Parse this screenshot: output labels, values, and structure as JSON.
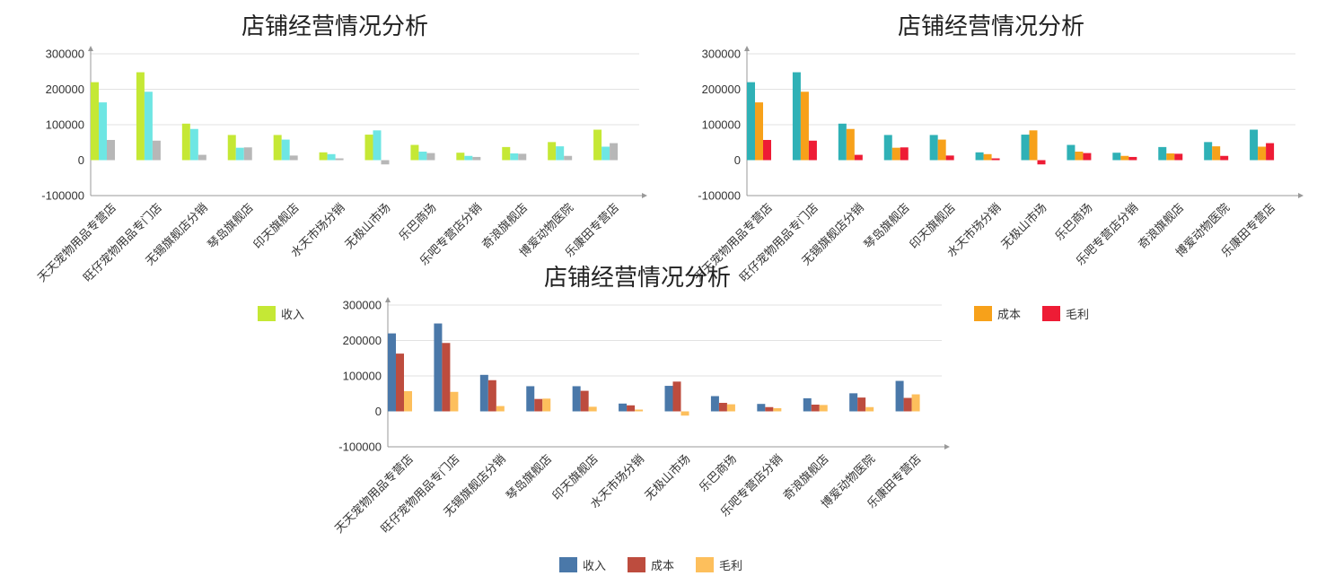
{
  "chart_data": [
    {
      "type": "bar",
      "title": "店铺经营情况分析",
      "categories": [
        "天天宠物用品专营店",
        "旺仔宠物用品专门店",
        "无锡旗舰店分销",
        "琴岛旗舰店",
        "印天旗舰店",
        "水天市场分销",
        "无极山市场",
        "乐巴商场",
        "乐吧专营店分销",
        "奇浪旗舰店",
        "博爱动物医院",
        "乐康田专营店"
      ],
      "series": [
        {
          "name": "收入",
          "values": [
            220000,
            248000,
            103000,
            71000,
            71000,
            22000,
            72000,
            43000,
            21000,
            37000,
            51000,
            86000
          ]
        },
        {
          "name": "",
          "values": [
            163000,
            193000,
            88000,
            35000,
            58000,
            17000,
            84000,
            24000,
            12000,
            19000,
            39000,
            38000
          ]
        },
        {
          "name": "",
          "values": [
            57000,
            55000,
            15000,
            36000,
            13000,
            5000,
            -12000,
            20000,
            9000,
            18000,
            12000,
            48000
          ]
        }
      ],
      "colors": [
        "#c5e835",
        "#6ee6e3",
        "#b7b7b7"
      ],
      "yticks": [
        "300000",
        "200000",
        "100000",
        "0",
        "-100000"
      ],
      "ylim": [
        -100000,
        300000
      ],
      "legend": [
        {
          "label": "收入",
          "color": "#c5e835"
        }
      ],
      "legend_position": "bottom-left",
      "grid": true
    },
    {
      "type": "bar",
      "title": "店铺经营情况分析",
      "categories": [
        "天天宠物用品专营店",
        "旺仔宠物用品专门店",
        "无锡旗舰店分销",
        "琴岛旗舰店",
        "印天旗舰店",
        "水天市场分销",
        "无极山市场",
        "乐巴商场",
        "乐吧专营店分销",
        "奇浪旗舰店",
        "博爱动物医院",
        "乐康田专营店"
      ],
      "series": [
        {
          "name": "",
          "values": [
            220000,
            248000,
            103000,
            71000,
            71000,
            22000,
            72000,
            43000,
            21000,
            37000,
            51000,
            86000
          ]
        },
        {
          "name": "成本",
          "values": [
            163000,
            193000,
            88000,
            35000,
            58000,
            17000,
            84000,
            24000,
            12000,
            19000,
            39000,
            38000
          ]
        },
        {
          "name": "毛利",
          "values": [
            57000,
            55000,
            15000,
            36000,
            13000,
            5000,
            -12000,
            20000,
            9000,
            18000,
            12000,
            48000
          ]
        }
      ],
      "colors": [
        "#2fb1b6",
        "#f7a11a",
        "#ee1c35"
      ],
      "yticks": [
        "300000",
        "200000",
        "100000",
        "0",
        "-100000"
      ],
      "ylim": [
        -100000,
        300000
      ],
      "legend": [
        {
          "label": "成本",
          "color": "#f7a11a"
        },
        {
          "label": "毛利",
          "color": "#ee1c35"
        }
      ],
      "legend_position": "bottom-right",
      "grid": true
    },
    {
      "type": "bar",
      "title": "店铺经营情况分析",
      "categories": [
        "天天宠物用品专营店",
        "旺仔宠物用品专门店",
        "无锡旗舰店分销",
        "琴岛旗舰店",
        "印天旗舰店",
        "水天市场分销",
        "无极山市场",
        "乐巴商场",
        "乐吧专营店分销",
        "奇浪旗舰店",
        "博爱动物医院",
        "乐康田专营店"
      ],
      "series": [
        {
          "name": "收入",
          "values": [
            220000,
            248000,
            103000,
            71000,
            71000,
            22000,
            72000,
            43000,
            21000,
            37000,
            51000,
            86000
          ]
        },
        {
          "name": "成本",
          "values": [
            163000,
            193000,
            88000,
            35000,
            58000,
            17000,
            84000,
            24000,
            12000,
            19000,
            39000,
            38000
          ]
        },
        {
          "name": "毛利",
          "values": [
            57000,
            55000,
            15000,
            36000,
            13000,
            5000,
            -12000,
            20000,
            9000,
            18000,
            12000,
            48000
          ]
        }
      ],
      "colors": [
        "#4a78a9",
        "#bd4c3e",
        "#fdbf5c"
      ],
      "yticks": [
        "300000",
        "200000",
        "100000",
        "0",
        "-100000"
      ],
      "ylim": [
        -100000,
        300000
      ],
      "legend": [
        {
          "label": "收入",
          "color": "#4a78a9"
        },
        {
          "label": "成本",
          "color": "#bd4c3e"
        },
        {
          "label": "毛利",
          "color": "#fdbf5c"
        }
      ],
      "legend_position": "bottom",
      "grid": true
    }
  ]
}
